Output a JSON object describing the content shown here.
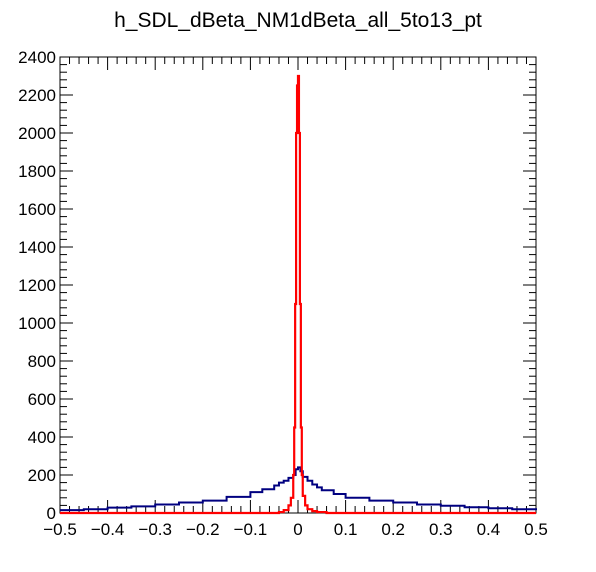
{
  "chart_data": {
    "type": "line",
    "title": "h_SDL_dBeta_NM1dBeta_all_5to13_pt",
    "xlabel": "",
    "ylabel": "",
    "xlim": [
      -0.5,
      0.5
    ],
    "ylim": [
      0,
      2400
    ],
    "x_ticks": [
      -0.5,
      -0.4,
      -0.3,
      -0.2,
      -0.1,
      0,
      0.1,
      0.2,
      0.3,
      0.4,
      0.5
    ],
    "x_tick_labels": [
      "−0.5",
      "−0.4",
      "−0.3",
      "−0.2",
      "−0.1",
      "0",
      "0.1",
      "0.2",
      "0.3",
      "0.4",
      "0.5"
    ],
    "y_ticks": [
      0,
      200,
      400,
      600,
      800,
      1000,
      1200,
      1400,
      1600,
      1800,
      2000,
      2200,
      2400
    ],
    "y_tick_labels": [
      "0",
      "200",
      "400",
      "600",
      "800",
      "1000",
      "1200",
      "1400",
      "1600",
      "1800",
      "2000",
      "2200",
      "2400"
    ],
    "grid": false,
    "legend": "none",
    "series": [
      {
        "color": "#000080",
        "style": "step",
        "x": [
          -0.5,
          -0.45,
          -0.4,
          -0.35,
          -0.3,
          -0.25,
          -0.2,
          -0.15,
          -0.1,
          -0.075,
          -0.05,
          -0.04,
          -0.03,
          -0.02,
          -0.01,
          -0.005,
          0,
          0.005,
          0.01,
          0.02,
          0.03,
          0.04,
          0.05,
          0.075,
          0.1,
          0.15,
          0.2,
          0.25,
          0.3,
          0.35,
          0.4,
          0.45,
          0.5
        ],
        "y": [
          15,
          20,
          28,
          35,
          45,
          55,
          65,
          85,
          110,
          125,
          145,
          160,
          170,
          185,
          200,
          230,
          240,
          220,
          190,
          170,
          150,
          135,
          120,
          100,
          80,
          65,
          55,
          45,
          38,
          30,
          25,
          20,
          15
        ]
      },
      {
        "color": "#ff0000",
        "style": "step",
        "x": [
          -0.5,
          -0.06,
          -0.04,
          -0.03,
          -0.02,
          -0.015,
          -0.01,
          -0.008,
          -0.006,
          -0.004,
          -0.002,
          0,
          0.002,
          0.004,
          0.006,
          0.008,
          0.01,
          0.015,
          0.02,
          0.03,
          0.04,
          0.06,
          0.5
        ],
        "y": [
          0,
          0,
          5,
          15,
          40,
          80,
          200,
          450,
          1100,
          2000,
          2250,
          2300,
          2000,
          1100,
          450,
          200,
          90,
          40,
          20,
          10,
          5,
          0,
          0
        ]
      }
    ]
  }
}
